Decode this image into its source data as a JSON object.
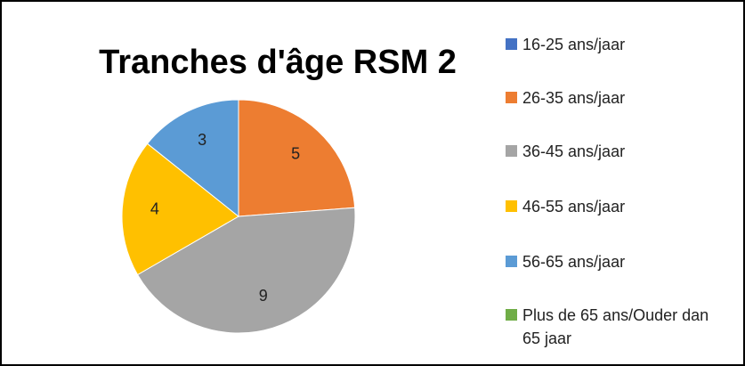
{
  "chart_data": {
    "type": "pie",
    "title": "Tranches d'âge RSM 2",
    "categories": [
      "16-25 ans/jaar",
      "26-35 ans/jaar",
      "36-45 ans/jaar",
      "46-55 ans/jaar",
      "56-65 ans/jaar",
      "Plus de 65 ans/Ouder dan 65 jaar"
    ],
    "values": [
      0,
      5,
      9,
      4,
      3,
      0
    ],
    "colors": [
      "#4472c4",
      "#ed7d31",
      "#a5a5a5",
      "#ffc000",
      "#5b9bd5",
      "#70ad47"
    ],
    "legend": "right"
  }
}
